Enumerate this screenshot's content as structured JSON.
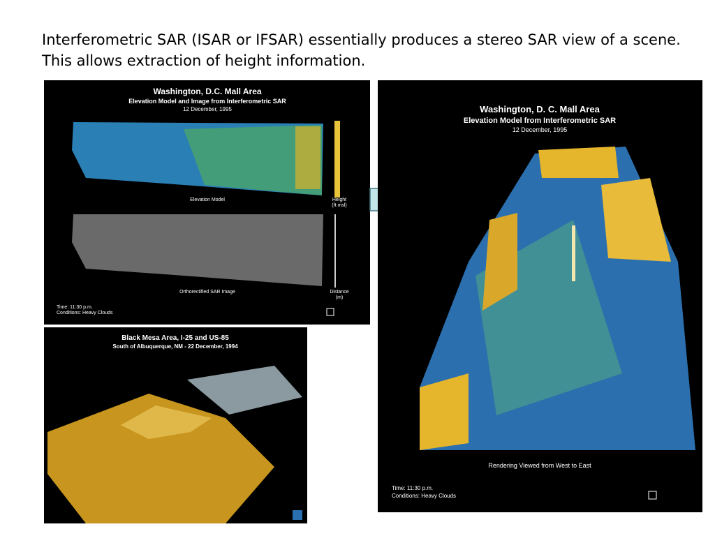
{
  "intro": "Interferometric SAR (ISAR or IFSAR) essentially produces a stereo SAR view of a scene.  This allows extraction of height information.",
  "panels": [
    {
      "title": "Washington, D.C. Mall Area",
      "subtitle": "Elevation Model and Image from Interferometric SAR",
      "date": "12 December, 1995",
      "upper_caption": "Elevation Model",
      "upper_scale": "Height",
      "upper_scale_unit": "(ft msl)",
      "lower_caption": "Orthorectified SAR Image",
      "lower_scale": "Distance",
      "lower_scale_unit": "(m)",
      "time": "Time: 11:30 p.m.",
      "conditions": "Conditions: Heavy Clouds"
    },
    {
      "title": "Black Mesa Area, I-25 and US-85",
      "subtitle": "South of Albuquerque, NM - 22 December, 1994"
    },
    {
      "title": "Washington, D. C. Mall Area",
      "subtitle": "Elevation Model from Interferometric SAR",
      "date": "12 December, 1995",
      "caption": "Rendering Viewed from West to East",
      "time": "Time: 11:30 p.m.",
      "conditions": "Conditions: Heavy Clouds"
    }
  ]
}
